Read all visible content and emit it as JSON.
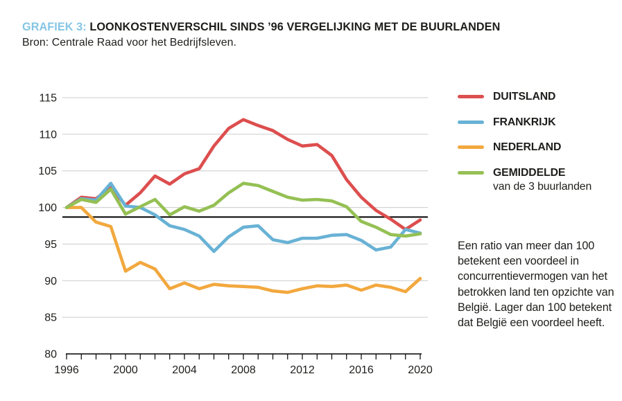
{
  "header": {
    "label": "GRAFIEK 3:",
    "title": "LOONKOSTENVERSCHIL SINDS ’96 VERGELIJKING MET DE BUURLANDEN",
    "source": "Bron: Centrale Raad voor het Bedrijfsleven."
  },
  "accent_color": "#85C5E3",
  "text_color": "#1d1d1b",
  "grid_color": "#CBCBCB",
  "note": "Een ratio van meer dan 100 betekent een voordeel in concurrentievermogen van het betrokken land ten opzichte van België. Lager dan 100 betekent dat België een voordeel heeft.",
  "legend": {
    "items": [
      {
        "label": "DUITSLAND",
        "color": "#DD4E4E"
      },
      {
        "label": "FRANKRIJK",
        "color": "#68B2D5"
      },
      {
        "label": "NEDERLAND",
        "color": "#F2A83E"
      },
      {
        "label": "GEMIDDELDE",
        "sublabel": "van de 3 buurlanden",
        "color": "#95C054"
      }
    ]
  },
  "chart_data": {
    "type": "line",
    "title": "Loonkostenverschil sinds 1996, vergelijking met de buurlanden (ratio, 1996 = 100)",
    "xlabel": "",
    "ylabel": "",
    "x": [
      1996,
      1997,
      1998,
      1999,
      2000,
      2001,
      2002,
      2003,
      2004,
      2005,
      2006,
      2007,
      2008,
      2009,
      2010,
      2011,
      2012,
      2013,
      2014,
      2015,
      2016,
      2017,
      2018,
      2019,
      2020
    ],
    "xtick_labels": [
      1996,
      2000,
      2004,
      2008,
      2012,
      2016,
      2020
    ],
    "ylim": [
      80,
      115
    ],
    "yticks": [
      80,
      85,
      90,
      95,
      100,
      105,
      110,
      115
    ],
    "grid": "horizontal",
    "reference_line_y": 98.7,
    "legend_position": "right",
    "series": [
      {
        "name": "DUITSLAND",
        "color": "#DD4E4E",
        "values": [
          100,
          101.4,
          101.2,
          102.8,
          100.3,
          102,
          104.3,
          103.2,
          104.6,
          105.3,
          108.4,
          110.8,
          112,
          111.2,
          110.5,
          109.3,
          108.4,
          108.6,
          107.1,
          103.8,
          101.4,
          99.6,
          98.4,
          97,
          98.3
        ]
      },
      {
        "name": "FRANKRIJK",
        "color": "#68B2D5",
        "values": [
          100,
          101.2,
          101,
          103.3,
          100.2,
          100,
          99,
          97.5,
          97,
          96.1,
          94,
          96,
          97.3,
          97.5,
          95.6,
          95.2,
          95.8,
          95.8,
          96.2,
          96.3,
          95.5,
          94.2,
          94.6,
          97,
          96.5
        ]
      },
      {
        "name": "NEDERLAND",
        "color": "#F2A83E",
        "values": [
          100,
          100,
          98,
          97.4,
          91.3,
          92.5,
          91.6,
          88.9,
          89.7,
          88.9,
          89.5,
          89.3,
          89.2,
          89.1,
          88.6,
          88.4,
          88.9,
          89.3,
          89.2,
          89.4,
          88.7,
          89.4,
          89.1,
          88.5,
          90.3
        ]
      },
      {
        "name": "GEMIDDELDE van de 3 buurlanden",
        "color": "#95C054",
        "values": [
          100,
          101.1,
          100.7,
          102.5,
          99.1,
          100.1,
          101.1,
          99,
          100.1,
          99.5,
          100.3,
          102,
          103.3,
          103,
          102.2,
          101.4,
          101,
          101.1,
          100.9,
          100.1,
          98.1,
          97.3,
          96.3,
          96.1,
          96.4
        ]
      }
    ]
  }
}
